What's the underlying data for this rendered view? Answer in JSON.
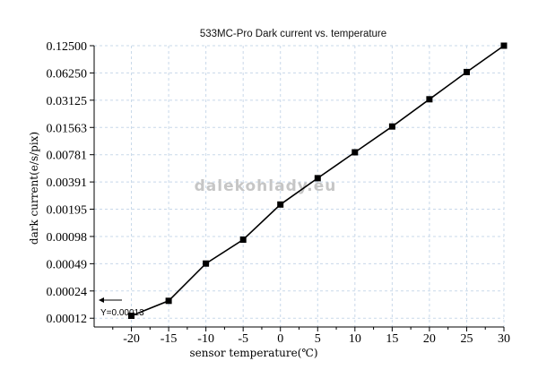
{
  "chart_data": {
    "type": "line",
    "title": "533MC-Pro Dark current vs. temperature",
    "xlabel": "sensor temperature(℃)",
    "ylabel": "dark current(e/s/pix)",
    "x_ticks": [
      "-20",
      "-15",
      "-10",
      "-5",
      "0",
      "5",
      "10",
      "15",
      "20",
      "25",
      "30"
    ],
    "y_ticks": [
      "0.00012",
      "0.00024",
      "0.00049",
      "0.00098",
      "0.00195",
      "0.00391",
      "0.00781",
      "0.01563",
      "0.03125",
      "0.06250",
      "0.12500"
    ],
    "xlim": [
      -25,
      30
    ],
    "ylim": [
      9.77e-05,
      0.125
    ],
    "y_scale": "log2",
    "grid": true,
    "series": [
      {
        "x": [
          -20,
          -15,
          -10,
          -5,
          0,
          5,
          10,
          15,
          20,
          25,
          30
        ],
        "y": [
          0.00013,
          0.00019,
          0.00049,
          0.0009,
          0.0022,
          0.0043,
          0.0083,
          0.016,
          0.032,
          0.064,
          0.125
        ],
        "color": "#000000",
        "marker": "square"
      }
    ],
    "annotation": {
      "text": "Y=0.00013",
      "value": 0.00013
    },
    "watermark": "dalekohlady.eu"
  }
}
